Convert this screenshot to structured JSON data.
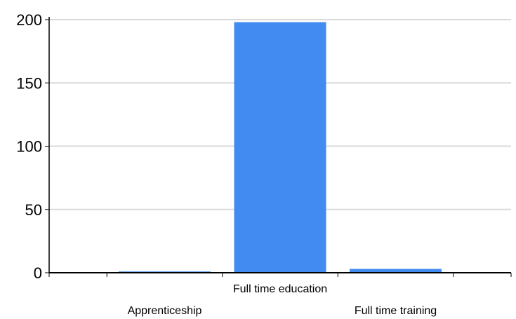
{
  "chart_data": {
    "type": "bar",
    "title": "",
    "xlabel": "",
    "ylabel": "",
    "categories": [
      "Apprenticeship",
      "Full time education",
      "Full time training"
    ],
    "values": [
      1,
      198,
      3
    ],
    "ylim": [
      0,
      200
    ],
    "yticks": [
      0,
      50,
      100,
      150,
      200
    ],
    "grid": true,
    "legend": "none",
    "colors": {
      "bar": "#428bf0",
      "grid": "#d9d9d9",
      "axis": "#000000",
      "text": "#000000"
    }
  }
}
